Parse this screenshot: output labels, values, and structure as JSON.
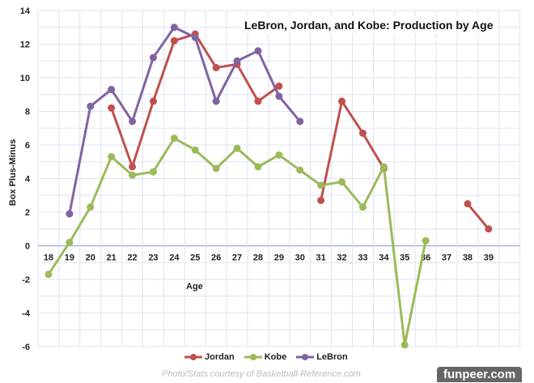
{
  "chart_data": {
    "type": "line",
    "title": "LeBron, Jordan, and Kobe: Production by Age",
    "xlabel": "Age",
    "ylabel": "Box Plus-Minus",
    "categories": [
      "18",
      "19",
      "20",
      "21",
      "22",
      "23",
      "24",
      "25",
      "26",
      "27",
      "28",
      "29",
      "30",
      "31",
      "32",
      "33",
      "34",
      "35",
      "36",
      "37",
      "38",
      "39"
    ],
    "ylim": [
      -6,
      14
    ],
    "yticks": [
      "14",
      "12",
      "10",
      "8",
      "6",
      "4",
      "2",
      "0",
      "-2",
      "-4",
      "-6"
    ],
    "grid": true,
    "legend_position": "bottom",
    "series": [
      {
        "name": "Jordan",
        "color": "#c0504d",
        "values": [
          null,
          null,
          null,
          8.2,
          4.7,
          8.6,
          12.2,
          12.6,
          10.6,
          10.8,
          8.6,
          9.5,
          null,
          2.7,
          8.6,
          6.7,
          4.6,
          null,
          null,
          null,
          2.5,
          1.0
        ]
      },
      {
        "name": "Kobe",
        "color": "#9bbb59",
        "values": [
          -1.7,
          0.2,
          2.3,
          5.3,
          4.2,
          4.4,
          6.4,
          5.7,
          4.6,
          5.8,
          4.7,
          5.4,
          4.5,
          3.6,
          3.8,
          2.3,
          4.7,
          -5.9,
          0.3,
          null,
          null,
          null
        ]
      },
      {
        "name": "LeBron",
        "color": "#8064a2",
        "values": [
          null,
          1.9,
          8.3,
          9.3,
          7.4,
          11.2,
          13.0,
          12.4,
          8.6,
          11.0,
          11.6,
          8.9,
          7.4,
          null,
          null,
          null,
          null,
          null,
          null,
          null,
          null,
          null
        ]
      }
    ]
  },
  "credit": "Photo/Stats courtesy of Basketball-Reference.com",
  "watermark": "funpeer.com"
}
